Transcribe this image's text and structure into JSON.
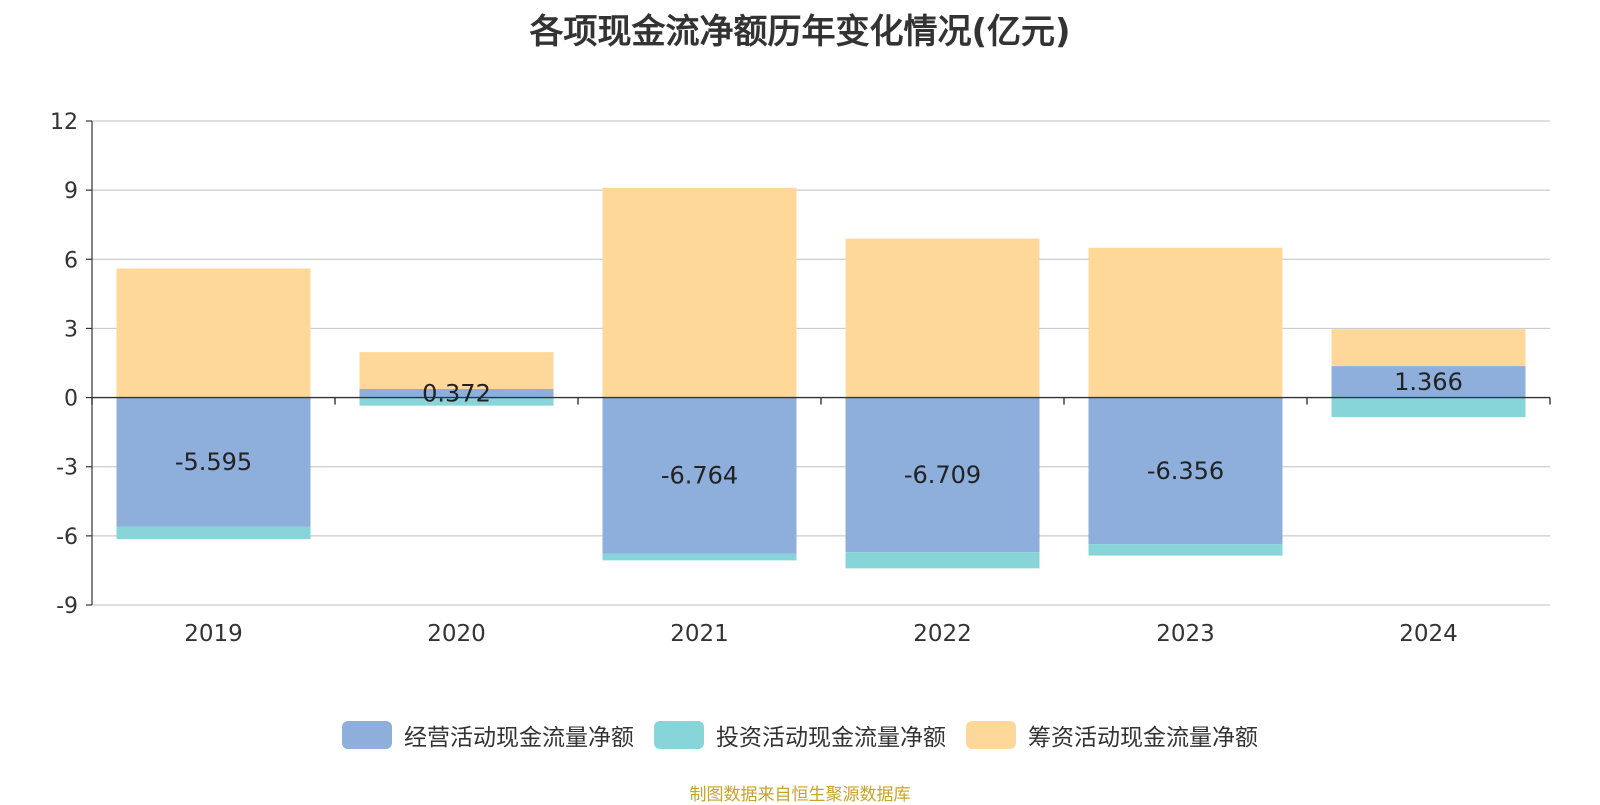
{
  "title": "各项现金流净额历年变化情况(亿元)",
  "source": "制图数据来自恒生聚源数据库",
  "colors": {
    "operating": "#8eaedb",
    "investing": "#87d5d8",
    "financing": "#fed898"
  },
  "chart_data": {
    "type": "bar",
    "stacked": true,
    "title": "各项现金流净额历年变化情况(亿元)",
    "categories": [
      "2019",
      "2020",
      "2021",
      "2022",
      "2023",
      "2024"
    ],
    "ylim": [
      -9,
      12
    ],
    "yticks": [
      12,
      9,
      6,
      3,
      0,
      -3,
      -6,
      -9
    ],
    "grid": true,
    "legend_position": "bottom",
    "series": [
      {
        "name": "经营活动现金流量净额",
        "values": [
          -5.595,
          0.372,
          -6.764,
          -6.709,
          -6.356,
          1.366
        ],
        "labels": [
          "-5.595",
          "0.372",
          "-6.764",
          "-6.709",
          "-6.356",
          "1.366"
        ]
      },
      {
        "name": "投资活动现金流量净额",
        "values": [
          -0.55,
          -0.35,
          -0.3,
          -0.7,
          -0.5,
          -0.85
        ]
      },
      {
        "name": "筹资活动现金流量净额",
        "values": [
          5.6,
          1.6,
          9.1,
          6.9,
          6.5,
          1.6
        ]
      }
    ]
  }
}
